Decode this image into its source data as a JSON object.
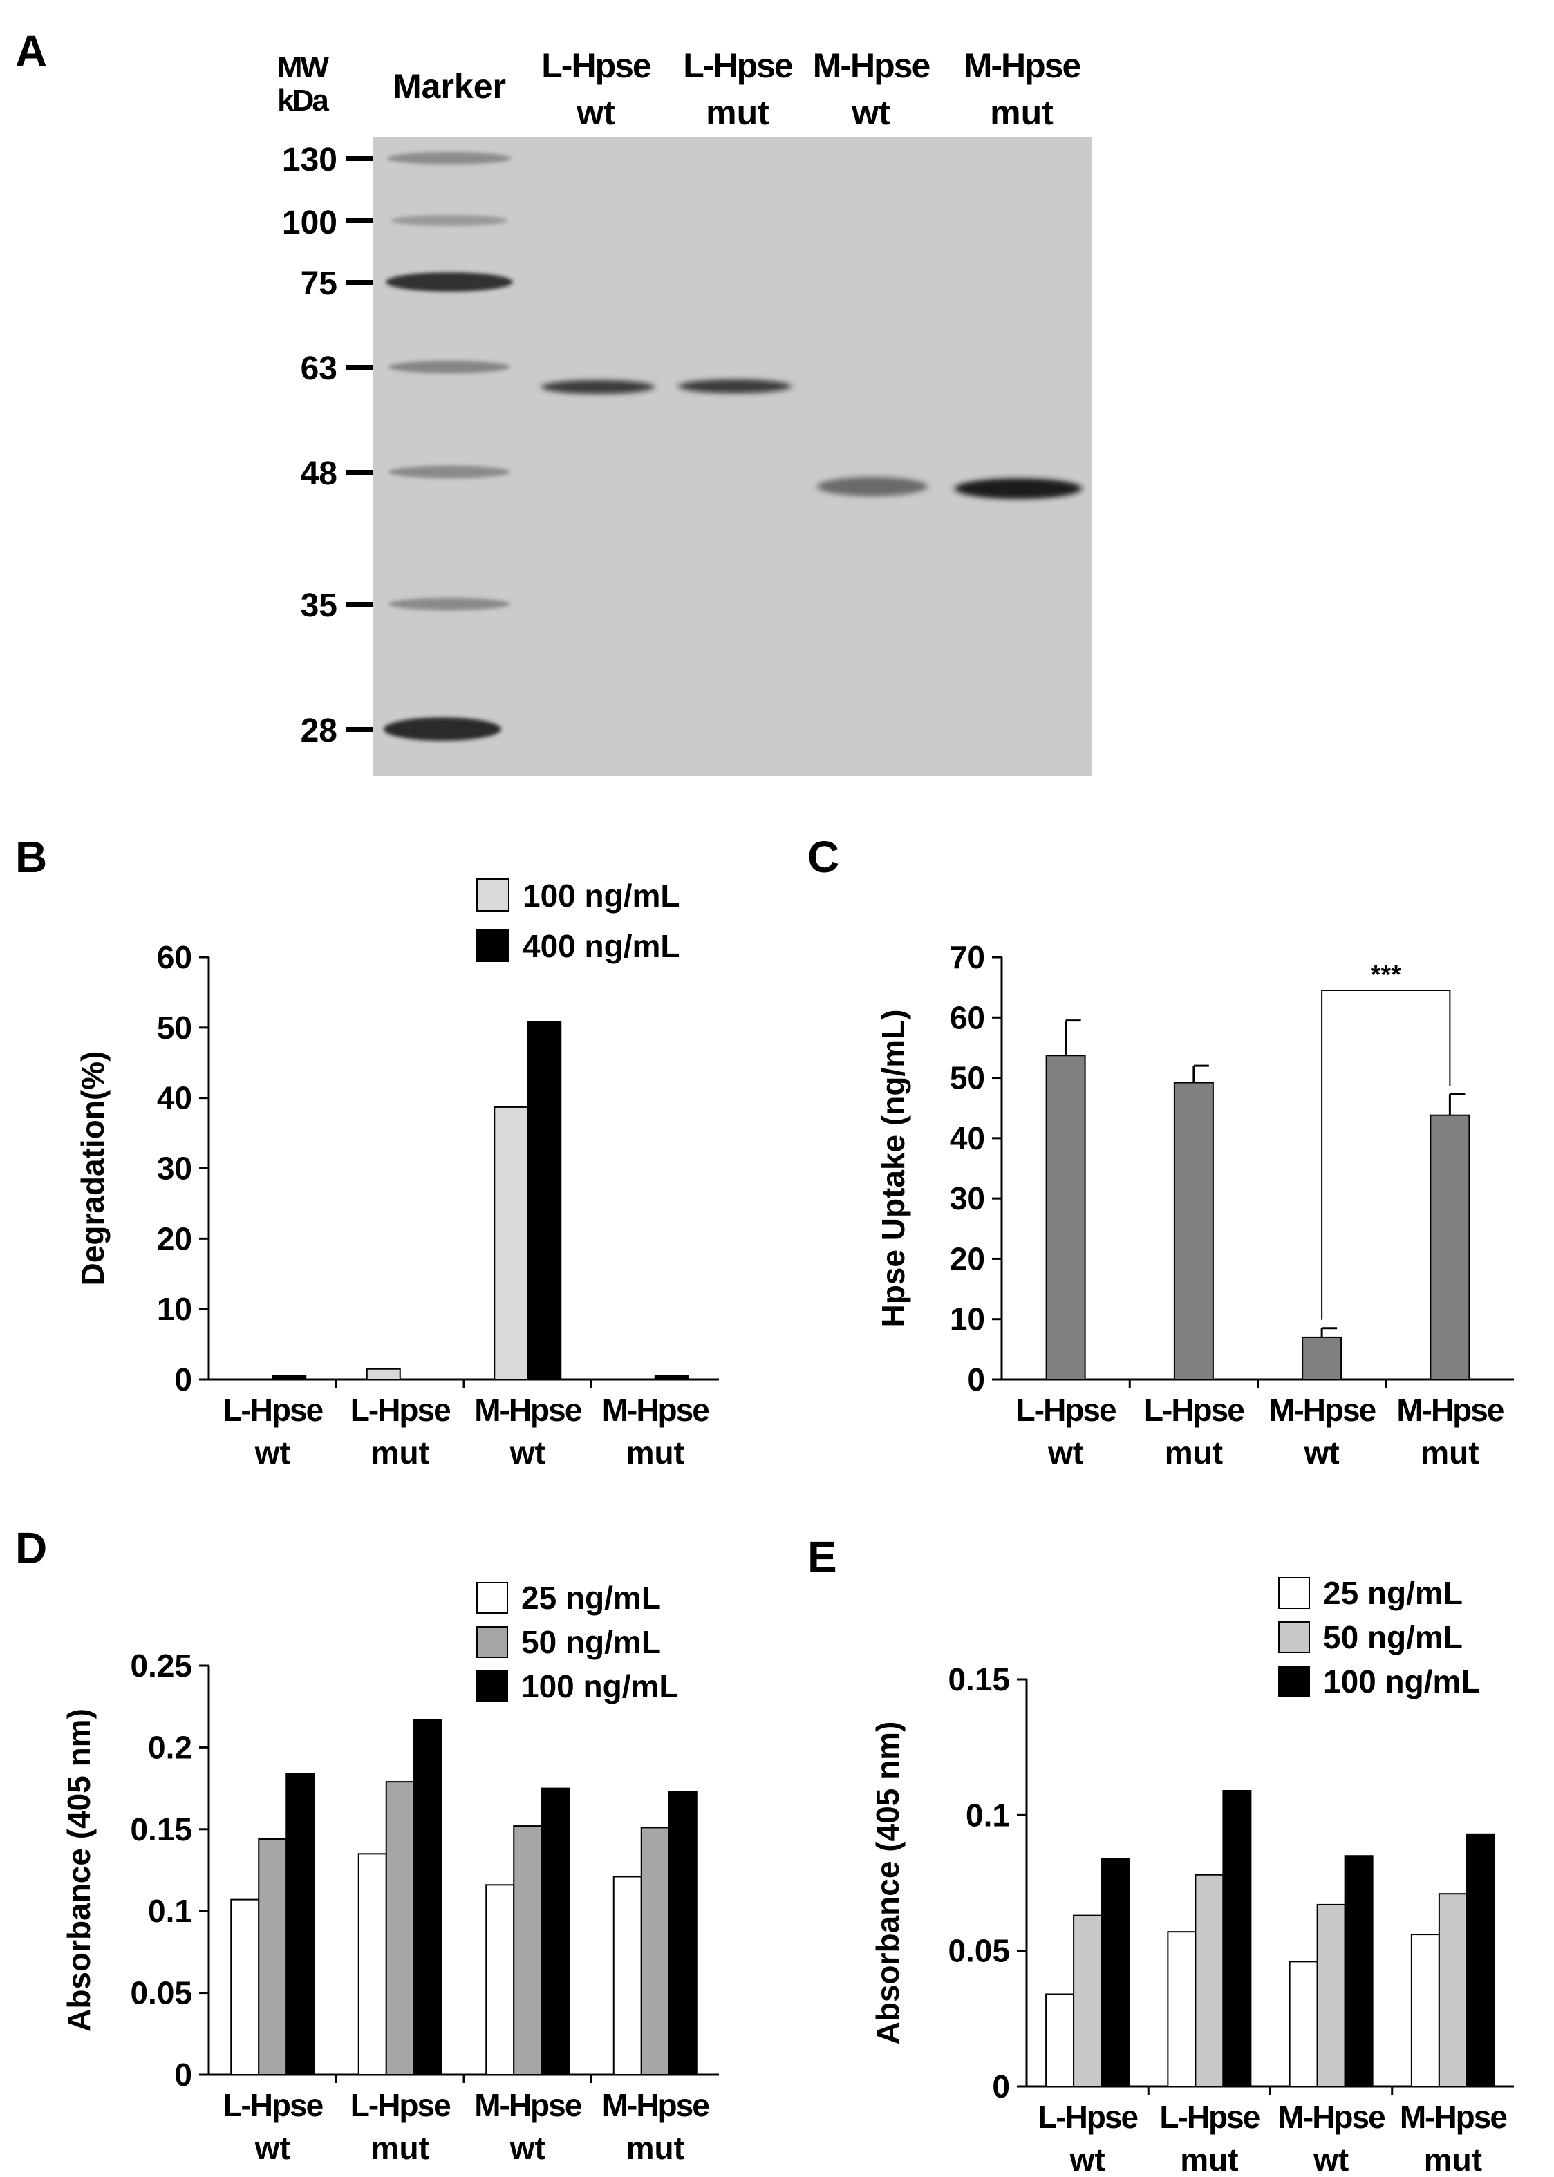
{
  "panels": {
    "a": {
      "letter": "A"
    },
    "b": {
      "letter": "B"
    },
    "c": {
      "letter": "C"
    },
    "d": {
      "letter": "D"
    },
    "e": {
      "letter": "E"
    }
  },
  "gel": {
    "mw_label_line1": "MW",
    "mw_label_line2": "kDa",
    "marker_label": "Marker",
    "lanes": [
      {
        "line1": "L-Hpse",
        "line2": "wt"
      },
      {
        "line1": "L-Hpse",
        "line2": "mut"
      },
      {
        "line1": "M-Hpse",
        "line2": "wt"
      },
      {
        "line1": "M-Hpse",
        "line2": "mut"
      }
    ],
    "mw_markers": [
      "130",
      "100",
      "75",
      "63",
      "48",
      "35",
      "28"
    ],
    "mw_marker_values": [
      130,
      100,
      75,
      63,
      48,
      35,
      28
    ],
    "gel_colors": {
      "background": "#cbcbcb",
      "band": "#3a3a3a"
    }
  },
  "chart_data": [
    {
      "panel": "B",
      "type": "bar",
      "ylabel": "Degradation(%)",
      "ylim": [
        0,
        60
      ],
      "yticks": [
        0,
        10,
        20,
        30,
        40,
        50,
        60
      ],
      "ytick_labels": [
        "0",
        "10",
        "20",
        "30",
        "40",
        "50",
        "60"
      ],
      "categories": [
        {
          "line1": "L-Hpse",
          "line2": "wt"
        },
        {
          "line1": "L-Hpse",
          "line2": "mut"
        },
        {
          "line1": "M-Hpse",
          "line2": "wt"
        },
        {
          "line1": "M-Hpse",
          "line2": "mut"
        }
      ],
      "series": [
        {
          "name": "100 ng/mL",
          "color": "#d9d9d9",
          "values": [
            0.0,
            1.5,
            38.7,
            0.0
          ]
        },
        {
          "name": "400 ng/mL",
          "color": "#000000",
          "values": [
            0.5,
            0.0,
            50.8,
            0.5
          ]
        }
      ],
      "legend_position": "top-right"
    },
    {
      "panel": "C",
      "type": "bar",
      "ylabel": "Hpse Uptake (ng/mL)",
      "ylim": [
        0,
        70
      ],
      "yticks": [
        0,
        10,
        20,
        30,
        40,
        50,
        60,
        70
      ],
      "ytick_labels": [
        "0",
        "10",
        "20",
        "30",
        "40",
        "50",
        "60",
        "70"
      ],
      "categories": [
        {
          "line1": "L-Hpse",
          "line2": "wt"
        },
        {
          "line1": "L-Hpse",
          "line2": "mut"
        },
        {
          "line1": "M-Hpse",
          "line2": "wt"
        },
        {
          "line1": "M-Hpse",
          "line2": "mut"
        }
      ],
      "series": [
        {
          "color": "#808080",
          "values": [
            53.7,
            49.2,
            7.0,
            43.8
          ],
          "errors": [
            5.8,
            2.8,
            1.5,
            3.5
          ]
        }
      ],
      "significance": {
        "label": "***",
        "from": 2,
        "to": 3,
        "bracket_y": 64.5
      }
    },
    {
      "panel": "D",
      "type": "bar",
      "ylabel": "Absorbance (405 nm)",
      "ylim": [
        0,
        0.25
      ],
      "yticks": [
        0,
        0.05,
        0.1,
        0.15,
        0.2,
        0.25
      ],
      "ytick_labels": [
        "0",
        "0.05",
        "0.1",
        "0.15",
        "0.2",
        "0.25"
      ],
      "categories": [
        {
          "line1": "L-Hpse",
          "line2": "wt"
        },
        {
          "line1": "L-Hpse",
          "line2": "mut"
        },
        {
          "line1": "M-Hpse",
          "line2": "wt"
        },
        {
          "line1": "M-Hpse",
          "line2": "mut"
        }
      ],
      "series": [
        {
          "name": "25 ng/mL",
          "color": "#ffffff",
          "values": [
            0.107,
            0.135,
            0.116,
            0.121
          ]
        },
        {
          "name": "50 ng/mL",
          "color": "#a6a6a6",
          "values": [
            0.144,
            0.179,
            0.152,
            0.151
          ]
        },
        {
          "name": "100 ng/mL",
          "color": "#000000",
          "values": [
            0.184,
            0.217,
            0.175,
            0.173
          ]
        }
      ],
      "legend_position": "top-right"
    },
    {
      "panel": "E",
      "type": "bar",
      "ylabel": "Absorbance (405 nm)",
      "ylim": [
        0,
        0.15
      ],
      "yticks": [
        0,
        0.05,
        0.1,
        0.15
      ],
      "ytick_labels": [
        "0",
        "0.05",
        "0.1",
        "0.15"
      ],
      "categories": [
        {
          "line1": "L-Hpse",
          "line2": "wt"
        },
        {
          "line1": "L-Hpse",
          "line2": "mut"
        },
        {
          "line1": "M-Hpse",
          "line2": "wt"
        },
        {
          "line1": "M-Hpse",
          "line2": "mut"
        }
      ],
      "series": [
        {
          "name": "25 ng/mL",
          "color": "#ffffff",
          "values": [
            0.034,
            0.057,
            0.046,
            0.056
          ]
        },
        {
          "name": "50 ng/mL",
          "color": "#c8c8c8",
          "values": [
            0.063,
            0.078,
            0.067,
            0.071
          ]
        },
        {
          "name": "100 ng/mL",
          "color": "#000000",
          "values": [
            0.084,
            0.109,
            0.085,
            0.093
          ]
        }
      ],
      "legend_position": "top-right"
    }
  ]
}
